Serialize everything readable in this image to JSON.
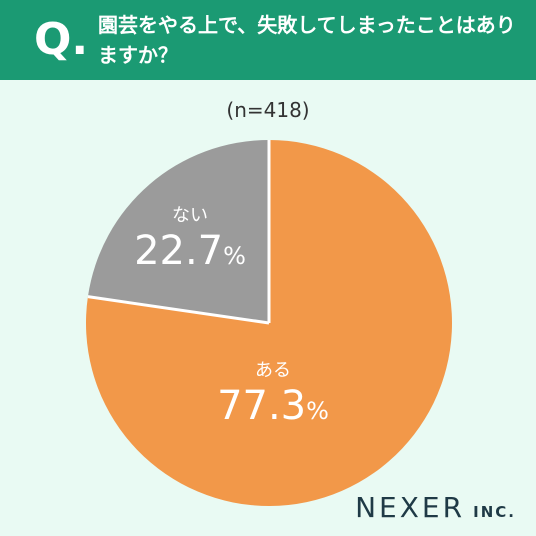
{
  "header": {
    "q_mark": "Q",
    "q_dot": ".",
    "question": "園芸をやる上で、失敗してしまったことはありますか？"
  },
  "sample_size": "(n=418)",
  "colors": {
    "header_bg": "#1b9a73",
    "background": "#e9faf3",
    "aru": "#f29849",
    "nai": "#9b9b9b",
    "divider": "#ffffff"
  },
  "chart_data": {
    "type": "pie",
    "slices": [
      {
        "label": "ある",
        "value": 77.3,
        "display": "77.3",
        "unit": "%",
        "color": "#f29849"
      },
      {
        "label": "ない",
        "value": 22.7,
        "display": "22.7",
        "unit": "%",
        "color": "#9b9b9b"
      }
    ],
    "start": "12 o'clock",
    "direction": "clockwise"
  },
  "logo": {
    "main": "NEXER",
    "sub": "INC."
  }
}
